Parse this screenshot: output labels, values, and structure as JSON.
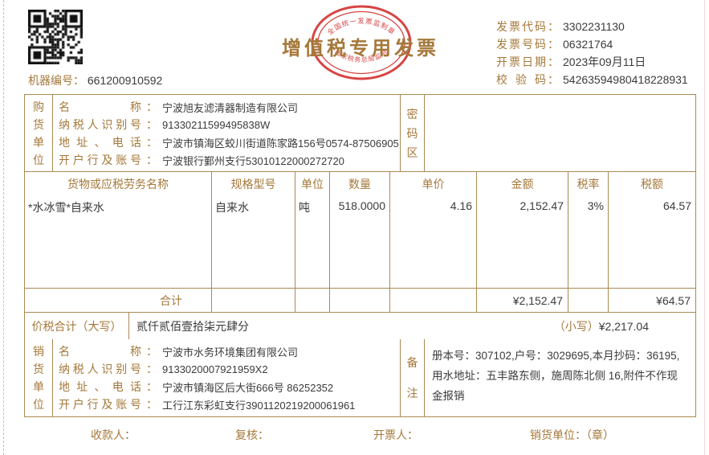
{
  "header": {
    "machine_label": "机器编号",
    "machine_colon": "：",
    "machine_no": "661200910592",
    "title": "增值税专用发票",
    "stamp_top": "全国统一发票监制章",
    "stamp_bottom": "国家税务总局监制",
    "info": [
      {
        "label": "发票代码",
        "value": "3302231130"
      },
      {
        "label": "发票号码",
        "value": "06321764"
      },
      {
        "label": "开票日期",
        "value": "2023年09月11日"
      },
      {
        "label": "校验码",
        "value": "54263594980418228931"
      }
    ],
    "colon": "："
  },
  "buyer": {
    "section_label": "购货单位",
    "rows": [
      {
        "label": "名称",
        "value": "宁波旭友滤清器制造有限公司"
      },
      {
        "label": "纳税人识别号",
        "value": "91330211599495838W"
      },
      {
        "label": "地址、电话",
        "value": "宁波市镇海区蛟川街道陈家路156号0574-87506905"
      },
      {
        "label": "开户行及账号",
        "value": "宁波银行鄞州支行53010122000272720"
      }
    ],
    "password_label": "密码区",
    "password_value": ""
  },
  "items": {
    "headers": [
      "货物或应税劳务名称",
      "规格型号",
      "单位",
      "数量",
      "单价",
      "金额",
      "税率",
      "税额"
    ],
    "rows": [
      {
        "name": "*水冰雪*自来水",
        "spec": "自来水",
        "unit": "吨",
        "qty": "518.0000",
        "price": "4.16",
        "amount": "2,152.47",
        "tax_rate": "3%",
        "tax": "64.57"
      }
    ],
    "total_label": "合计",
    "total_amount": "¥2,152.47",
    "total_tax": "¥64.57"
  },
  "total_section": {
    "label": "价税合计（大写）",
    "amount_words": "贰仟贰佰壹拾柒元肆分",
    "small_label": "（小写）",
    "amount_figures": "¥2,217.04"
  },
  "seller": {
    "section_label": "销货单位",
    "rows": [
      {
        "label": "名称",
        "value": "宁波市水务环境集团有限公司"
      },
      {
        "label": "纳税人识别号",
        "value": "9133020007921959X2"
      },
      {
        "label": "地址、电话",
        "value": "宁波市镇海区后大街666号 86252352"
      },
      {
        "label": "开户行及账号",
        "value": "工行江东彩虹支行3901120219200061961"
      }
    ],
    "remark_label": "备注",
    "remark": "册本号：307102,户号：3029695,本月抄码：36195,用水地址：五丰路东侧，施周陈北侧 16,附件不作现金报销"
  },
  "footer": {
    "payee": "收款人：",
    "reviewer": "复核：",
    "drawer": "开票人：",
    "seller_seal": "销货单位：（章）"
  },
  "colors": {
    "label_brown": "#a5783a",
    "value_dark": "#3b3b3b",
    "border": "#ab8a52",
    "stamp_red": "#d43030"
  }
}
